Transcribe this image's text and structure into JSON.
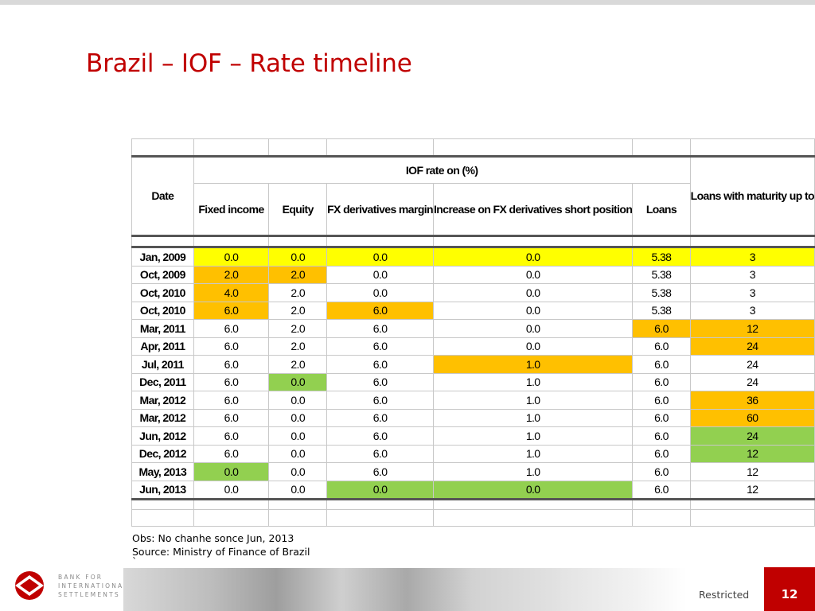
{
  "title": "Brazil – IOF – Rate timeline",
  "table": {
    "date_header": "Date",
    "group_header": "IOF rate on (%)",
    "columns": [
      "Fixed income",
      "Equity",
      "FX derivatives margin",
      "Increase on FX derivatives short position",
      "Loans"
    ],
    "last_column": "Loans with maturity up to",
    "rows": [
      {
        "date": "Jan, 2009",
        "values": [
          "0.0",
          "0.0",
          "0.0",
          "0.0",
          "5.38",
          "3"
        ]
      },
      {
        "date": "Oct, 2009",
        "values": [
          "2.0",
          "2.0",
          "0.0",
          "0.0",
          "5.38",
          "3"
        ]
      },
      {
        "date": "Oct, 2010",
        "values": [
          "4.0",
          "2.0",
          "0.0",
          "0.0",
          "5.38",
          "3"
        ]
      },
      {
        "date": "Oct, 2010",
        "values": [
          "6.0",
          "2.0",
          "6.0",
          "0.0",
          "5.38",
          "3"
        ]
      },
      {
        "date": "Mar, 2011",
        "values": [
          "6.0",
          "2.0",
          "6.0",
          "0.0",
          "6.0",
          "12"
        ]
      },
      {
        "date": "Apr, 2011",
        "values": [
          "6.0",
          "2.0",
          "6.0",
          "0.0",
          "6.0",
          "24"
        ]
      },
      {
        "date": "Jul, 2011",
        "values": [
          "6.0",
          "2.0",
          "6.0",
          "1.0",
          "6.0",
          "24"
        ]
      },
      {
        "date": "Dec, 2011",
        "values": [
          "6.0",
          "0.0",
          "6.0",
          "1.0",
          "6.0",
          "24"
        ]
      },
      {
        "date": "Mar, 2012",
        "values": [
          "6.0",
          "0.0",
          "6.0",
          "1.0",
          "6.0",
          "36"
        ]
      },
      {
        "date": "Mar, 2012",
        "values": [
          "6.0",
          "0.0",
          "6.0",
          "1.0",
          "6.0",
          "60"
        ]
      },
      {
        "date": "Jun, 2012",
        "values": [
          "6.0",
          "0.0",
          "6.0",
          "1.0",
          "6.0",
          "24"
        ]
      },
      {
        "date": "Dec, 2012",
        "values": [
          "6.0",
          "0.0",
          "6.0",
          "1.0",
          "6.0",
          "12"
        ]
      },
      {
        "date": "May, 2013",
        "values": [
          "0.0",
          "0.0",
          "6.0",
          "1.0",
          "6.0",
          "12"
        ]
      },
      {
        "date": "Jun, 2013",
        "values": [
          "0.0",
          "0.0",
          "0.0",
          "0.0",
          "6.0",
          "12"
        ]
      }
    ]
  },
  "notes": {
    "obs": "Obs: No chanhe sonce Jun, 2013",
    "source": "Source: Ministry of Finance of Brazil",
    "tick": "`"
  },
  "footer": {
    "logo_line1": "BANK FOR",
    "logo_line2": "INTERNATIONAL",
    "logo_line3": "SETTLEMENTS",
    "logo_icon": "bis-logo-icon",
    "restricted": "Restricted",
    "page_number": "12"
  },
  "colors": {
    "title": "#c00000",
    "yellow": "#ffff00",
    "orange": "#ffc000",
    "green": "#92d050",
    "accent": "#c00000"
  }
}
